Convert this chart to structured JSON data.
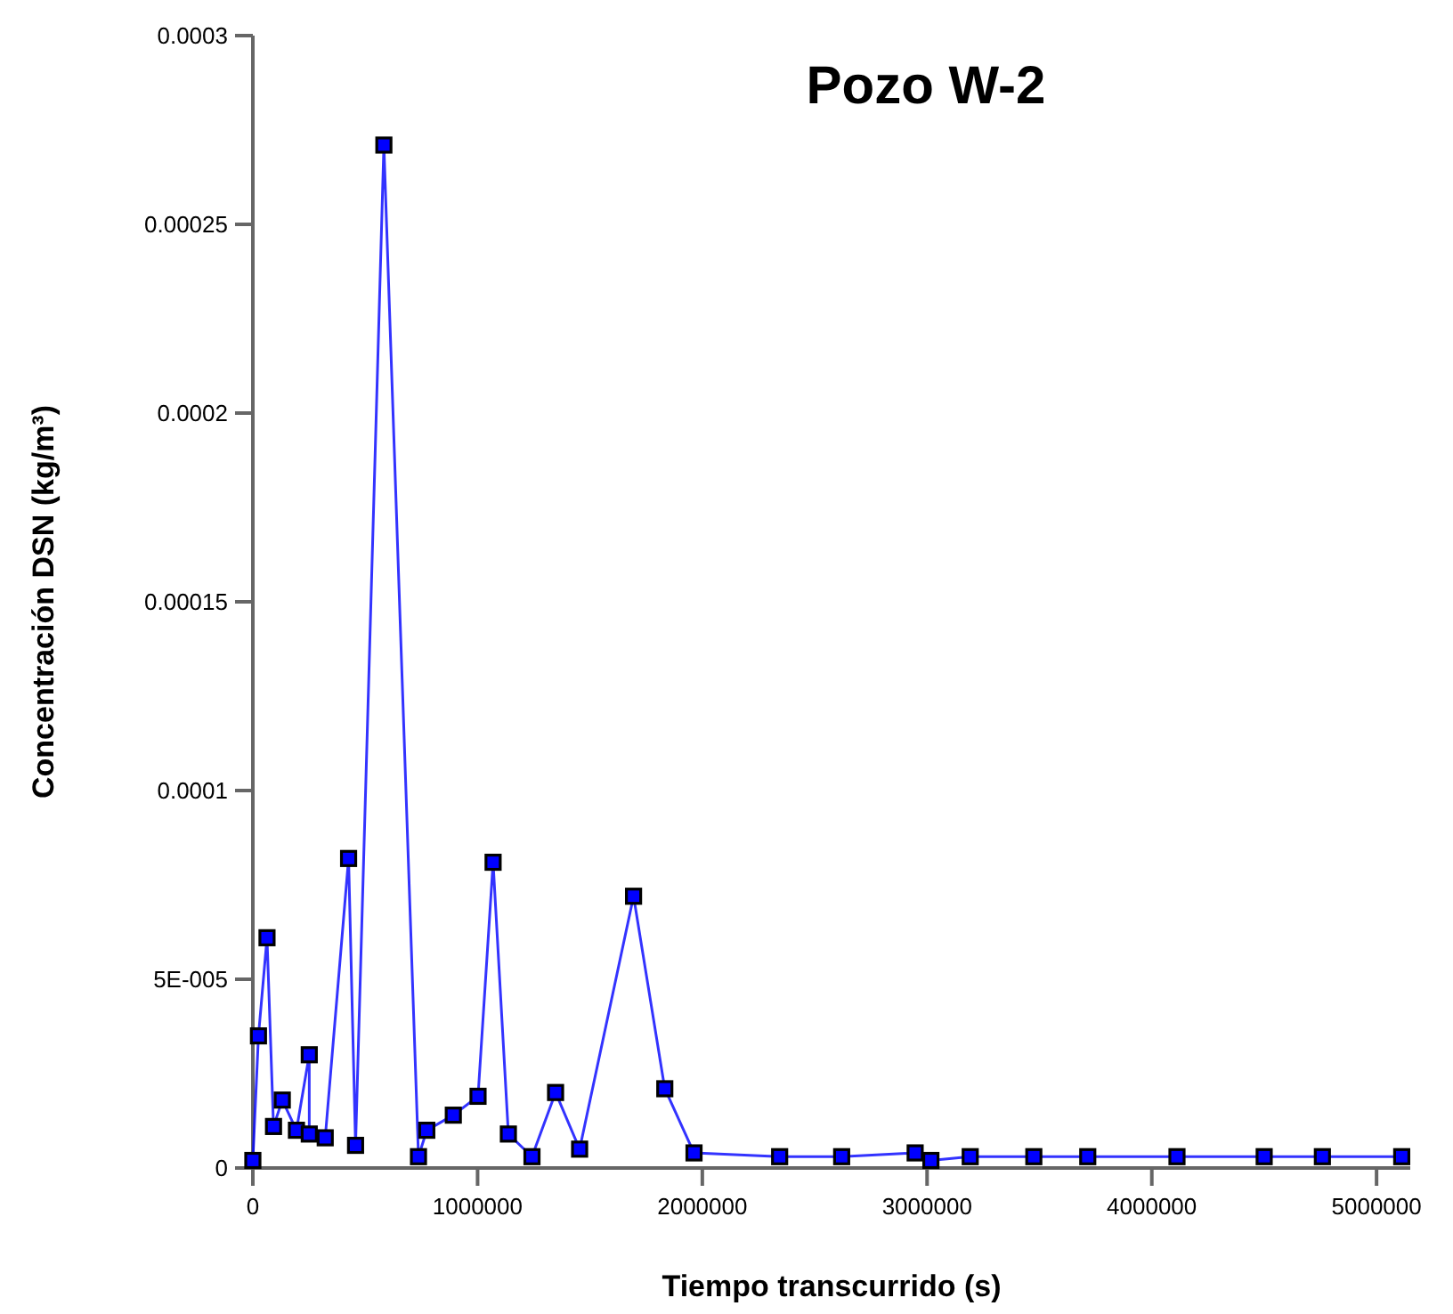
{
  "chart_data": {
    "type": "line",
    "title": "Pozo W-2",
    "xlabel": "Tiempo transcurrido (s)",
    "ylabel": "Concentración DSN (kg/m³)",
    "x": [
      0,
      25000,
      63000,
      92000,
      131000,
      194000,
      251000,
      251000,
      322000,
      426000,
      457000,
      583000,
      737000,
      774000,
      892000,
      1002000,
      1069000,
      1137000,
      1242000,
      1347000,
      1454000,
      1694000,
      1833000,
      1963000,
      2344000,
      2620000,
      2947000,
      3017000,
      3192000,
      3475000,
      3715000,
      4112000,
      4500000,
      4759000,
      5112000
    ],
    "series": [
      {
        "color": "#0000ff",
        "values": [
          2e-06,
          3.5e-05,
          6.1e-05,
          1.1e-05,
          1.8e-05,
          1e-05,
          3e-05,
          9e-06,
          8e-06,
          8.2e-05,
          6e-06,
          0.000271,
          3e-06,
          1e-05,
          1.4e-05,
          1.9e-05,
          8.1e-05,
          9e-06,
          3e-06,
          2e-05,
          5e-06,
          7.2e-05,
          2.1e-05,
          4e-06,
          3e-06,
          3e-06,
          4e-06,
          2e-06,
          3e-06,
          3e-06,
          3e-06,
          3e-06,
          3e-06,
          3e-06,
          3e-06
        ]
      }
    ],
    "xlim": [
      0,
      5150000
    ],
    "xticks": [
      0,
      1000000,
      2000000,
      3000000,
      4000000,
      5000000
    ],
    "ylim": [
      0,
      0.0003
    ],
    "yticks": [
      0,
      {
        "value": 5e-05,
        "label": "5E-005"
      },
      0.0001,
      0.00015,
      0.0002,
      0.00025,
      0.0003
    ],
    "marker": "square",
    "grid": false
  }
}
